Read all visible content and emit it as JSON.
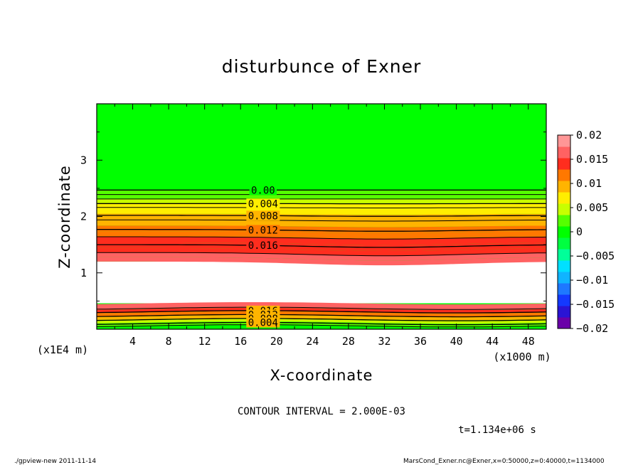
{
  "chart_data": {
    "type": "heatmap",
    "title": "disturbunce of Exner",
    "xlabel": "X-coordinate",
    "ylabel": "Z-coordinate",
    "x_unit": "(x1000 m)",
    "y_unit": "(x1E4 m)",
    "xlim": [
      0,
      50
    ],
    "ylim": [
      0,
      4
    ],
    "xticks": [
      4,
      8,
      12,
      16,
      20,
      24,
      28,
      32,
      36,
      40,
      44,
      48
    ],
    "yticks": [
      1,
      2,
      3
    ],
    "contour_interval_text": "CONTOUR INTERVAL = 2.000E-03",
    "time_text": "t=1.134e+06 s",
    "colorbar": {
      "range": [
        -0.02,
        0.02
      ],
      "tick_values": [
        0.02,
        0.015,
        0.01,
        0.005,
        0,
        -0.005,
        -0.01,
        -0.015,
        -0.02
      ],
      "tick_labels": [
        "0.02",
        "0.015",
        "0.01",
        "0.005",
        "0",
        "−0.005",
        "−0.01",
        "−0.015",
        "−0.02"
      ],
      "levels_bottom_to_top": [
        -0.02,
        -0.0175,
        -0.015,
        -0.0125,
        -0.01,
        -0.0075,
        -0.005,
        -0.0025,
        0,
        0.0025,
        0.005,
        0.0075,
        0.01,
        0.0125,
        0.015,
        0.0175,
        0.02
      ],
      "colors_bottom_to_top": [
        "#6a00a8",
        "#2a14d4",
        "#1439ff",
        "#1e78ff",
        "#10b4ff",
        "#00e0ff",
        "#00ff99",
        "#00ff40",
        "#00ff00",
        "#55ff00",
        "#c8ff00",
        "#ffee00",
        "#ffb400",
        "#ff7800",
        "#ff2d1e",
        "#ff6262",
        "#ff9696"
      ]
    },
    "upper_region": {
      "z_top_of_red_band": 1.2,
      "bands_bottom_to_top": [
        {
          "z": 1.2,
          "value": 0.019
        },
        {
          "z": 1.28,
          "value": 0.018
        },
        {
          "z": 1.36,
          "value": 0.017
        },
        {
          "z": 1.44,
          "value": 0.016
        },
        {
          "z": 1.54,
          "value": 0.015
        },
        {
          "z": 1.64,
          "value": 0.014
        },
        {
          "z": 1.74,
          "value": 0.013
        },
        {
          "z": 1.84,
          "value": 0.012
        },
        {
          "z": 1.94,
          "value": 0.011
        },
        {
          "z": 2.05,
          "value": 0.0095
        },
        {
          "z": 2.16,
          "value": 0.0085
        },
        {
          "z": 2.24,
          "value": 0.0065
        },
        {
          "z": 2.31,
          "value": 0.0045
        },
        {
          "z": 2.39,
          "value": 0.0025
        },
        {
          "z": 2.47,
          "value": 0.0005
        }
      ],
      "background_value": 0.0
    },
    "lower_region": {
      "bands_bottom_to_top": [
        {
          "z": 0.0,
          "value": 0.001
        },
        {
          "z": 0.06,
          "value": 0.004
        },
        {
          "z": 0.12,
          "value": 0.007
        },
        {
          "z": 0.18,
          "value": 0.01
        },
        {
          "z": 0.24,
          "value": 0.013
        },
        {
          "z": 0.3,
          "value": 0.016
        },
        {
          "z": 0.36,
          "value": 0.018
        }
      ],
      "top_z": 0.46
    },
    "contour_lines": [
      {
        "label": "0.00",
        "z": 2.47,
        "region": "upper"
      },
      {
        "label": "0.004",
        "z": 2.23,
        "region": "upper"
      },
      {
        "label": "0.008",
        "z": 2.02,
        "region": "upper"
      },
      {
        "label": "0.012",
        "z": 1.77,
        "region": "upper"
      },
      {
        "label": "0.016",
        "z": 1.5,
        "region": "upper"
      },
      {
        "label": "0.016",
        "z": 0.31,
        "region": "lower"
      },
      {
        "label": "0.012",
        "z": 0.24,
        "region": "lower"
      },
      {
        "label": "0.008",
        "z": 0.17,
        "region": "lower"
      },
      {
        "label": "0.004",
        "z": 0.1,
        "region": "lower"
      }
    ],
    "extra_contour_z": [
      2.39,
      2.31,
      2.16,
      1.94,
      1.64,
      1.36,
      0.37,
      0.06
    ]
  },
  "footer": {
    "left": "./gpview-new   2011-11-14",
    "right": "MarsCond_Exner.nc@Exner,x=0:50000,z=0:40000,t=1134000"
  }
}
